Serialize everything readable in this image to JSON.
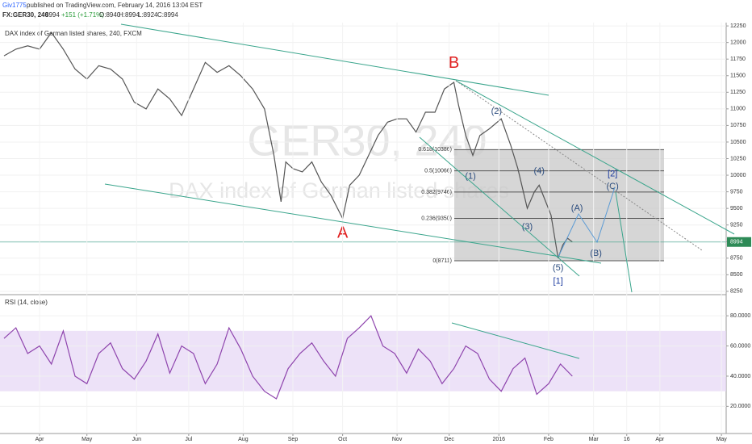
{
  "header": {
    "author": "Giv1775",
    "published": "published on TradingView.com, February 14, 2016 13:04 EST",
    "symbol": "FX:GER30, 240",
    "price": "8994",
    "change": "+151 (+1.71%)",
    "open": "O:8940",
    "high": "H:8994",
    "low": "L:8924",
    "close": "C:8994"
  },
  "chart_data": [
    {
      "type": "line",
      "title": "DAX index of German listed shares, 240, FXCM",
      "watermark": "GER30, 240",
      "watermark_subtitle": "DAX index of German listed shares",
      "color": "#555555",
      "x": [
        0,
        5,
        10,
        15,
        20,
        25,
        30,
        35,
        40,
        45,
        50,
        55,
        60,
        65,
        70,
        75,
        80,
        85,
        90,
        95,
        100,
        105,
        110,
        114,
        117,
        119,
        122,
        126,
        130,
        134,
        138,
        143,
        146,
        150,
        154,
        158,
        162,
        166,
        170,
        174,
        178,
        182,
        186,
        190,
        192,
        195,
        198,
        201,
        205,
        210,
        214,
        217,
        221,
        224,
        226,
        231,
        234,
        236,
        238,
        240
      ],
      "values": [
        11800,
        11900,
        11950,
        11900,
        12150,
        11900,
        11600,
        11450,
        11650,
        11600,
        11450,
        11100,
        11000,
        11300,
        11150,
        10900,
        11300,
        11700,
        11550,
        11650,
        11500,
        11300,
        11000,
        10300,
        9600,
        10200,
        10100,
        10050,
        10200,
        9900,
        9700,
        9350,
        9850,
        10000,
        10300,
        10600,
        10800,
        10850,
        10850,
        10650,
        10950,
        10950,
        11300,
        11400,
        11050,
        10600,
        10300,
        10600,
        10700,
        10850,
        10450,
        10100,
        9500,
        9750,
        9850,
        9400,
        8750,
        8950,
        9050,
        8994
      ],
      "last": 8994,
      "xlim": [
        0,
        305
      ],
      "ylim": [
        8200,
        12300
      ],
      "yticks": [
        8250,
        8500,
        8750,
        9000,
        9250,
        9500,
        9750,
        10000,
        10250,
        10500,
        10750,
        11000,
        11250,
        11500,
        11750,
        12000,
        12250
      ],
      "fib_levels": [
        {
          "value": 10386,
          "label": "0.618(10386)"
        },
        {
          "value": 10066,
          "label": "0.5(10066)"
        },
        {
          "value": 9746,
          "label": "0.382(9746)"
        },
        {
          "value": 9350,
          "label": "0.236(9350)"
        },
        {
          "value": 8711,
          "label": "0(8711)"
        }
      ],
      "annotations": [
        {
          "text": "A",
          "x": 143,
          "y": 9120,
          "color": "#e02020"
        },
        {
          "text": "B",
          "x": 190,
          "y": 11680,
          "color": "#e02020"
        },
        {
          "text": "(1)",
          "x": 197,
          "y": 9980,
          "color": "#2b4c7e"
        },
        {
          "text": "(2)",
          "x": 208,
          "y": 10960,
          "color": "#2b4c7e"
        },
        {
          "text": "(3)",
          "x": 221,
          "y": 9220,
          "color": "#2b4c7e"
        },
        {
          "text": "(4)",
          "x": 226,
          "y": 10060,
          "color": "#2b4c7e"
        },
        {
          "text": "(5)",
          "x": 234,
          "y": 8600,
          "color": "#2b4c7e"
        },
        {
          "text": "[1]",
          "x": 234,
          "y": 8400,
          "color": "#1a3a9e"
        },
        {
          "text": "(A)",
          "x": 242,
          "y": 9500,
          "color": "#2b4c7e"
        },
        {
          "text": "(B)",
          "x": 250,
          "y": 8820,
          "color": "#2b4c7e"
        },
        {
          "text": "(C)",
          "x": 257,
          "y": 9830,
          "color": "#2b4c7e"
        },
        {
          "text": "[2]",
          "x": 257,
          "y": 10020,
          "color": "#1a3a9e"
        }
      ]
    },
    {
      "type": "line",
      "title": "RSI (14, close)",
      "color": "#8e44ad",
      "band": [
        30,
        70
      ],
      "x": [
        0,
        5,
        10,
        15,
        20,
        25,
        30,
        35,
        40,
        45,
        50,
        55,
        60,
        65,
        70,
        75,
        80,
        85,
        90,
        95,
        100,
        105,
        110,
        115,
        120,
        125,
        130,
        135,
        140,
        145,
        150,
        155,
        160,
        165,
        170,
        175,
        180,
        185,
        190,
        195,
        200,
        205,
        210,
        215,
        220,
        225,
        230,
        235,
        240
      ],
      "values": [
        65,
        72,
        55,
        60,
        48,
        70,
        40,
        35,
        55,
        62,
        45,
        38,
        50,
        68,
        42,
        60,
        55,
        35,
        48,
        72,
        58,
        40,
        30,
        25,
        45,
        55,
        62,
        50,
        40,
        65,
        72,
        80,
        60,
        55,
        42,
        58,
        50,
        35,
        45,
        60,
        55,
        38,
        30,
        45,
        52,
        28,
        35,
        48,
        40
      ],
      "xlim": [
        0,
        305
      ],
      "ylim": [
        2,
        94
      ],
      "yticks": [
        {
          "value": 20,
          "label": "20.0000"
        },
        {
          "value": 40,
          "label": "40.0000"
        },
        {
          "value": 60,
          "label": "60.0000"
        },
        {
          "value": 80,
          "label": "80.0000"
        }
      ],
      "xticks": [
        {
          "value": 15,
          "label": "Apr"
        },
        {
          "value": 35,
          "label": "May"
        },
        {
          "value": 56,
          "label": "Jun"
        },
        {
          "value": 78,
          "label": "Jul"
        },
        {
          "value": 101,
          "label": "Aug"
        },
        {
          "value": 122,
          "label": "Sep"
        },
        {
          "value": 143,
          "label": "Oct"
        },
        {
          "value": 166,
          "label": "Nov"
        },
        {
          "value": 188,
          "label": "Dec"
        },
        {
          "value": 209,
          "label": "2016"
        },
        {
          "value": 230,
          "label": "Feb"
        },
        {
          "value": 249,
          "label": "Mar"
        },
        {
          "value": 263,
          "label": "16"
        },
        {
          "value": 277,
          "label": "Apr"
        },
        {
          "value": 303,
          "label": "May"
        }
      ]
    }
  ]
}
